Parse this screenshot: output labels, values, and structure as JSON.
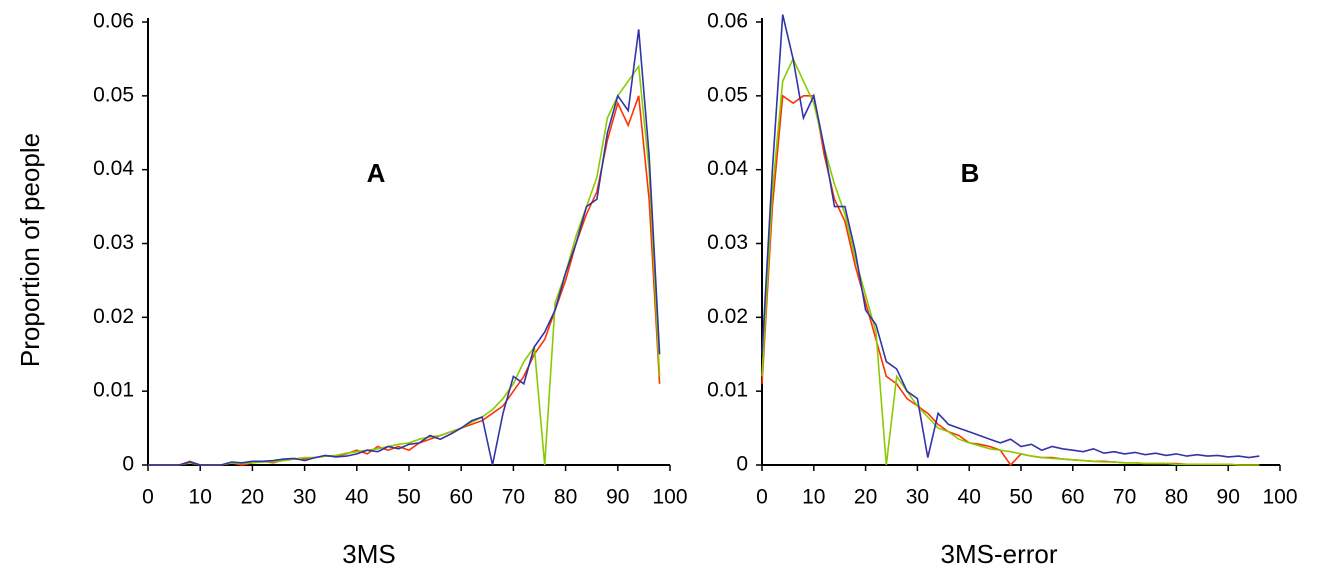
{
  "chart_data": [
    {
      "type": "line",
      "label": "A",
      "xlabel": "3MS",
      "ylabel": "Proportion of people",
      "x": [
        0,
        2,
        4,
        6,
        8,
        10,
        12,
        14,
        16,
        18,
        20,
        22,
        24,
        26,
        28,
        30,
        32,
        34,
        36,
        38,
        40,
        42,
        44,
        46,
        48,
        50,
        52,
        54,
        56,
        58,
        60,
        62,
        64,
        66,
        68,
        70,
        72,
        74,
        76,
        78,
        80,
        82,
        84,
        86,
        88,
        90,
        92,
        94,
        96,
        98
      ],
      "series": [
        {
          "color": "#ff3300",
          "values": [
            0,
            0,
            0,
            0,
            0.0005,
            0,
            0,
            0,
            0.0003,
            0,
            0.0003,
            0.0005,
            0.0003,
            0.0007,
            0.0008,
            0.0008,
            0.001,
            0.0012,
            0.0012,
            0.0015,
            0.002,
            0.0015,
            0.0025,
            0.002,
            0.0025,
            0.002,
            0.003,
            0.0035,
            0.004,
            0.0045,
            0.005,
            0.0055,
            0.006,
            0.007,
            0.008,
            0.01,
            0.012,
            0.015,
            0.017,
            0.021,
            0.025,
            0.03,
            0.034,
            0.037,
            0.044,
            0.049,
            0.046,
            0.05,
            0.036,
            0.011
          ]
        },
        {
          "color": "#88cc00",
          "values": [
            0,
            0,
            0,
            0,
            0.0003,
            0,
            0,
            0,
            0.0003,
            0.0002,
            0.0003,
            0.0004,
            0.0004,
            0.0006,
            0.0008,
            0.001,
            0.001,
            0.0012,
            0.0013,
            0.0016,
            0.0018,
            0.002,
            0.0022,
            0.0025,
            0.0028,
            0.003,
            0.0035,
            0.0038,
            0.004,
            0.0045,
            0.005,
            0.0058,
            0.0065,
            0.0075,
            0.009,
            0.011,
            0.014,
            0.016,
            0,
            0.022,
            0.026,
            0.031,
            0.035,
            0.039,
            0.047,
            0.05,
            0.052,
            0.054,
            0.04,
            0.012
          ]
        },
        {
          "color": "#3333aa",
          "values": [
            0,
            0,
            0,
            0,
            0.0004,
            0,
            0,
            0,
            0.0004,
            0.0003,
            0.0005,
            0.0005,
            0.0006,
            0.0008,
            0.0009,
            0.0006,
            0.001,
            0.0013,
            0.0011,
            0.0012,
            0.0015,
            0.002,
            0.0018,
            0.0025,
            0.0022,
            0.0028,
            0.003,
            0.004,
            0.0035,
            0.0042,
            0.005,
            0.006,
            0.0065,
            0,
            0.007,
            0.012,
            0.011,
            0.016,
            0.018,
            0.021,
            0.026,
            0.03,
            0.035,
            0.036,
            0.045,
            0.05,
            0.048,
            0.059,
            0.042,
            0.015
          ]
        }
      ],
      "xlim": [
        0,
        100
      ],
      "xticks": [
        0,
        10,
        20,
        30,
        40,
        50,
        60,
        70,
        80,
        90,
        100
      ],
      "ylim": [
        0,
        0.06
      ],
      "yticks": [
        0,
        0.01,
        0.02,
        0.03,
        0.04,
        0.05,
        0.06
      ]
    },
    {
      "type": "line",
      "label": "B",
      "xlabel": "3MS-error",
      "x": [
        0,
        2,
        4,
        6,
        8,
        10,
        12,
        14,
        16,
        18,
        20,
        22,
        24,
        26,
        28,
        30,
        32,
        34,
        36,
        38,
        40,
        42,
        44,
        46,
        48,
        50,
        52,
        54,
        56,
        58,
        60,
        62,
        64,
        66,
        68,
        70,
        72,
        74,
        76,
        78,
        80,
        82,
        84,
        86,
        88,
        90,
        92,
        94,
        96
      ],
      "series": [
        {
          "color": "#ff3300",
          "values": [
            0.011,
            0.035,
            0.05,
            0.049,
            0.05,
            0.05,
            0.042,
            0.036,
            0.033,
            0.027,
            0.022,
            0.017,
            0.012,
            0.011,
            0.009,
            0.008,
            0.007,
            0.0055,
            0.0045,
            0.004,
            0.003,
            0.0028,
            0.0025,
            0.002,
            0,
            0.0015,
            0.0012,
            0.001,
            0.001,
            0.0008,
            0.0007,
            0.0006,
            0.0005,
            0.0005,
            0.0004,
            0.0003,
            0.0003,
            0.0002,
            0.0002,
            0.0002,
            0.0002,
            0.0001,
            0.0001,
            0.0001,
            0.0001,
            0.0001,
            0,
            0,
            0
          ]
        },
        {
          "color": "#88cc00",
          "values": [
            0.012,
            0.037,
            0.052,
            0.055,
            0.052,
            0.049,
            0.043,
            0.038,
            0.034,
            0.028,
            0.023,
            0.018,
            0,
            0.012,
            0.01,
            0.008,
            0.0065,
            0.005,
            0.0045,
            0.0035,
            0.003,
            0.0026,
            0.0022,
            0.002,
            0.0018,
            0.0015,
            0.0012,
            0.001,
            0.0009,
            0.0008,
            0.0007,
            0.0006,
            0.0005,
            0.0004,
            0.0004,
            0.0003,
            0.0003,
            0.0002,
            0.0002,
            0.0002,
            0.0001,
            0.0001,
            0.0001,
            0.0001,
            0.0001,
            0.0001,
            0,
            0,
            0
          ]
        },
        {
          "color": "#3333aa",
          "values": [
            0.015,
            0.04,
            0.061,
            0.055,
            0.047,
            0.05,
            0.043,
            0.035,
            0.035,
            0.029,
            0.021,
            0.019,
            0.014,
            0.013,
            0.01,
            0.009,
            0.001,
            0.007,
            0.0055,
            0.005,
            0.0045,
            0.004,
            0.0035,
            0.003,
            0.0035,
            0.0025,
            0.0028,
            0.002,
            0.0025,
            0.0022,
            0.002,
            0.0018,
            0.0022,
            0.0016,
            0.0018,
            0.0015,
            0.0017,
            0.0014,
            0.0016,
            0.0013,
            0.0015,
            0.0012,
            0.0014,
            0.0012,
            0.0013,
            0.0011,
            0.0012,
            0.001,
            0.0012
          ]
        }
      ],
      "xlim": [
        0,
        100
      ],
      "xticks": [
        0,
        10,
        20,
        30,
        40,
        50,
        60,
        70,
        80,
        90,
        100
      ],
      "ylim": [
        0,
        0.06
      ],
      "yticks": [
        0,
        0.01,
        0.02,
        0.03,
        0.04,
        0.05,
        0.06
      ]
    }
  ]
}
